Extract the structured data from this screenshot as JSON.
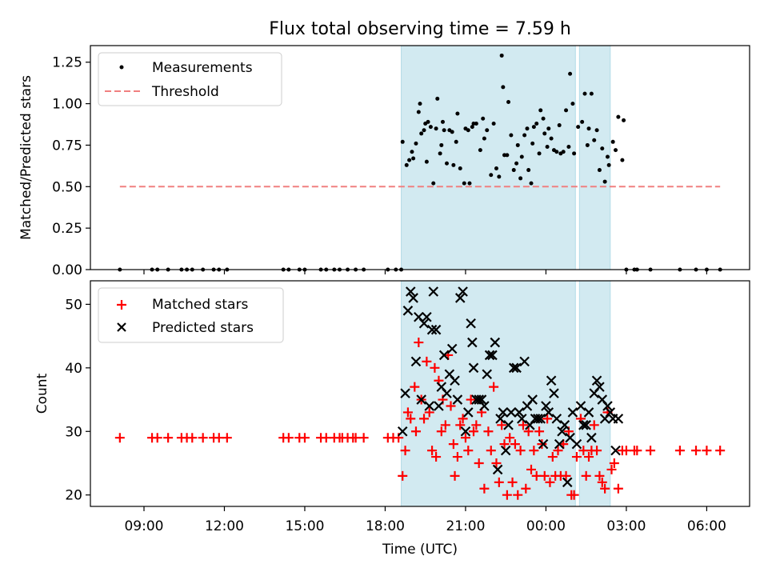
{
  "title": "Flux total observing time = 7.59 h",
  "x_axis": {
    "label": "Time (UTC)",
    "ticks": [
      "09:00",
      "12:00",
      "15:00",
      "18:00",
      "21:00",
      "00:00",
      "03:00",
      "06:00"
    ],
    "tick_hours": [
      9,
      12,
      15,
      18,
      21,
      24,
      27,
      30
    ],
    "range_hours": [
      7.0,
      31.6
    ]
  },
  "colors": {
    "span": "#add8e6",
    "threshold": "#f08080",
    "measure": "#000000",
    "matched": "#ff0000",
    "predicted": "#000000"
  },
  "chart_data": [
    {
      "type": "scatter",
      "ylabel": "Matched/Predicted stars",
      "ylim": [
        0,
        1.35
      ],
      "yticks": [
        "0.00",
        "0.25",
        "0.50",
        "0.75",
        "1.00",
        "1.25"
      ],
      "ytick_values": [
        0,
        0.25,
        0.5,
        0.75,
        1.0,
        1.25
      ],
      "legend": [
        "Measurements",
        "Threshold"
      ],
      "legend_position": "upper-left",
      "shaded_spans_hours": [
        [
          18.6,
          25.1
        ],
        [
          25.25,
          26.4
        ]
      ],
      "threshold": {
        "y": 0.5,
        "x_range_hours": [
          8.1,
          30.5
        ]
      },
      "measurements": [
        [
          8.1,
          0
        ],
        [
          9.3,
          0
        ],
        [
          9.5,
          0
        ],
        [
          9.9,
          0
        ],
        [
          10.4,
          0
        ],
        [
          10.6,
          0
        ],
        [
          10.8,
          0
        ],
        [
          11.2,
          0
        ],
        [
          11.6,
          0
        ],
        [
          11.8,
          0
        ],
        [
          12.1,
          0
        ],
        [
          14.2,
          0
        ],
        [
          14.4,
          0
        ],
        [
          14.8,
          0
        ],
        [
          15.0,
          0
        ],
        [
          15.6,
          0
        ],
        [
          15.8,
          0
        ],
        [
          16.1,
          0
        ],
        [
          16.3,
          0
        ],
        [
          16.6,
          0
        ],
        [
          16.9,
          0
        ],
        [
          17.2,
          0
        ],
        [
          18.1,
          0
        ],
        [
          18.4,
          0
        ],
        [
          18.6,
          0
        ],
        [
          18.65,
          0.77
        ],
        [
          18.8,
          0.63
        ],
        [
          18.9,
          0.66
        ],
        [
          19.0,
          0.71
        ],
        [
          19.05,
          0.67
        ],
        [
          19.15,
          0.76
        ],
        [
          19.25,
          0.95
        ],
        [
          19.3,
          1.0
        ],
        [
          19.35,
          0.82
        ],
        [
          19.45,
          0.84
        ],
        [
          19.5,
          0.88
        ],
        [
          19.55,
          0.65
        ],
        [
          19.6,
          0.89
        ],
        [
          19.7,
          0.86
        ],
        [
          19.8,
          0.52
        ],
        [
          19.9,
          0.85
        ],
        [
          19.95,
          1.03
        ],
        [
          20.05,
          0.7
        ],
        [
          20.1,
          0.75
        ],
        [
          20.15,
          0.89
        ],
        [
          20.2,
          0.84
        ],
        [
          20.3,
          0.64
        ],
        [
          20.4,
          0.84
        ],
        [
          20.5,
          0.83
        ],
        [
          20.55,
          0.63
        ],
        [
          20.65,
          0.77
        ],
        [
          20.7,
          0.94
        ],
        [
          20.8,
          0.61
        ],
        [
          20.95,
          0.52
        ],
        [
          21.0,
          0.85
        ],
        [
          21.1,
          0.84
        ],
        [
          21.15,
          0.52
        ],
        [
          21.25,
          0.86
        ],
        [
          21.3,
          0.88
        ],
        [
          21.4,
          0.88
        ],
        [
          21.55,
          0.72
        ],
        [
          21.65,
          0.91
        ],
        [
          21.7,
          0.79
        ],
        [
          21.8,
          0.84
        ],
        [
          21.95,
          0.57
        ],
        [
          22.05,
          0.88
        ],
        [
          22.15,
          0.61
        ],
        [
          22.25,
          0.56
        ],
        [
          22.35,
          1.29
        ],
        [
          22.4,
          1.1
        ],
        [
          22.45,
          0.69
        ],
        [
          22.55,
          0.69
        ],
        [
          22.6,
          1.01
        ],
        [
          22.7,
          0.81
        ],
        [
          22.8,
          0.6
        ],
        [
          22.9,
          0.64
        ],
        [
          22.95,
          0.75
        ],
        [
          23.05,
          0.55
        ],
        [
          23.1,
          0.68
        ],
        [
          23.2,
          0.81
        ],
        [
          23.3,
          0.85
        ],
        [
          23.35,
          0.6
        ],
        [
          23.45,
          0.52
        ],
        [
          23.5,
          0.76
        ],
        [
          23.55,
          0.86
        ],
        [
          23.65,
          0.88
        ],
        [
          23.75,
          0.7
        ],
        [
          23.8,
          0.96
        ],
        [
          23.9,
          0.91
        ],
        [
          23.95,
          0.82
        ],
        [
          24.05,
          0.74
        ],
        [
          24.1,
          0.85
        ],
        [
          24.2,
          0.79
        ],
        [
          24.3,
          0.72
        ],
        [
          24.4,
          0.71
        ],
        [
          24.5,
          0.87
        ],
        [
          24.55,
          0.7
        ],
        [
          24.65,
          0.71
        ],
        [
          24.75,
          0.96
        ],
        [
          24.85,
          0.74
        ],
        [
          24.9,
          1.18
        ],
        [
          25.0,
          1.0
        ],
        [
          25.05,
          0.7
        ],
        [
          25.2,
          0.86
        ],
        [
          25.35,
          0.89
        ],
        [
          25.45,
          1.06
        ],
        [
          25.55,
          0.75
        ],
        [
          25.6,
          0.85
        ],
        [
          25.7,
          1.06
        ],
        [
          25.8,
          0.78
        ],
        [
          25.9,
          0.84
        ],
        [
          26.0,
          0.6
        ],
        [
          26.1,
          0.73
        ],
        [
          26.2,
          0.53
        ],
        [
          26.3,
          0.68
        ],
        [
          26.35,
          0.63
        ],
        [
          26.5,
          0.77
        ],
        [
          26.6,
          0.72
        ],
        [
          26.7,
          0.92
        ],
        [
          26.85,
          0.66
        ],
        [
          26.9,
          0.9
        ],
        [
          27.0,
          0
        ],
        [
          27.3,
          0
        ],
        [
          27.4,
          0
        ],
        [
          27.9,
          0
        ],
        [
          29.0,
          0
        ],
        [
          29.6,
          0
        ],
        [
          30.0,
          0
        ],
        [
          30.5,
          0
        ]
      ]
    },
    {
      "type": "scatter",
      "ylabel": "Count",
      "ylim": [
        18.2,
        53.7
      ],
      "yticks": [
        "20",
        "30",
        "40",
        "50"
      ],
      "ytick_values": [
        20,
        30,
        40,
        50
      ],
      "legend": [
        "Matched stars",
        "Predicted stars"
      ],
      "legend_position": "upper-left",
      "shaded_spans_hours": [
        [
          18.6,
          25.1
        ],
        [
          25.25,
          26.4
        ]
      ],
      "matched": [
        [
          8.1,
          29
        ],
        [
          9.3,
          29
        ],
        [
          9.5,
          29
        ],
        [
          9.9,
          29
        ],
        [
          10.4,
          29
        ],
        [
          10.6,
          29
        ],
        [
          10.8,
          29
        ],
        [
          11.2,
          29
        ],
        [
          11.6,
          29
        ],
        [
          11.8,
          29
        ],
        [
          12.1,
          29
        ],
        [
          14.2,
          29
        ],
        [
          14.4,
          29
        ],
        [
          14.8,
          29
        ],
        [
          15.0,
          29
        ],
        [
          15.6,
          29
        ],
        [
          15.8,
          29
        ],
        [
          16.1,
          29
        ],
        [
          16.3,
          29
        ],
        [
          16.4,
          29
        ],
        [
          16.6,
          29
        ],
        [
          16.8,
          29
        ],
        [
          16.9,
          29
        ],
        [
          17.2,
          29
        ],
        [
          18.1,
          29
        ],
        [
          18.3,
          29
        ],
        [
          18.5,
          29
        ],
        [
          18.65,
          23
        ],
        [
          18.75,
          27
        ],
        [
          18.85,
          33
        ],
        [
          18.95,
          32
        ],
        [
          19.1,
          37
        ],
        [
          19.15,
          30
        ],
        [
          19.25,
          44
        ],
        [
          19.35,
          35
        ],
        [
          19.45,
          32
        ],
        [
          19.55,
          41
        ],
        [
          19.65,
          33
        ],
        [
          19.75,
          27
        ],
        [
          19.85,
          40
        ],
        [
          19.9,
          26
        ],
        [
          20.0,
          38
        ],
        [
          20.1,
          30
        ],
        [
          20.15,
          35
        ],
        [
          20.25,
          31
        ],
        [
          20.35,
          42
        ],
        [
          20.45,
          34
        ],
        [
          20.55,
          28
        ],
        [
          20.6,
          23
        ],
        [
          20.7,
          26
        ],
        [
          20.8,
          31
        ],
        [
          20.9,
          32
        ],
        [
          21.0,
          29
        ],
        [
          21.1,
          27
        ],
        [
          21.2,
          35
        ],
        [
          21.3,
          30
        ],
        [
          21.4,
          31
        ],
        [
          21.5,
          25
        ],
        [
          21.6,
          33
        ],
        [
          21.7,
          21
        ],
        [
          21.85,
          30
        ],
        [
          21.95,
          27
        ],
        [
          22.05,
          37
        ],
        [
          22.15,
          25
        ],
        [
          22.25,
          22
        ],
        [
          22.35,
          31
        ],
        [
          22.45,
          28
        ],
        [
          22.55,
          20
        ],
        [
          22.65,
          29
        ],
        [
          22.75,
          22
        ],
        [
          22.85,
          28
        ],
        [
          22.95,
          20
        ],
        [
          23.05,
          27
        ],
        [
          23.15,
          31
        ],
        [
          23.25,
          21
        ],
        [
          23.35,
          30
        ],
        [
          23.45,
          24
        ],
        [
          23.55,
          27
        ],
        [
          23.65,
          23
        ],
        [
          23.75,
          30
        ],
        [
          23.85,
          28
        ],
        [
          23.95,
          23
        ],
        [
          24.05,
          32
        ],
        [
          24.15,
          22
        ],
        [
          24.25,
          26
        ],
        [
          24.35,
          23
        ],
        [
          24.45,
          27
        ],
        [
          24.55,
          23
        ],
        [
          24.65,
          28
        ],
        [
          24.75,
          23
        ],
        [
          24.85,
          30
        ],
        [
          24.95,
          20
        ],
        [
          25.05,
          20
        ],
        [
          25.15,
          26
        ],
        [
          25.3,
          32
        ],
        [
          25.4,
          27
        ],
        [
          25.5,
          23
        ],
        [
          25.6,
          26
        ],
        [
          25.7,
          27
        ],
        [
          25.8,
          31
        ],
        [
          25.9,
          27
        ],
        [
          26.0,
          23
        ],
        [
          26.1,
          22
        ],
        [
          26.2,
          21
        ],
        [
          26.3,
          33
        ],
        [
          26.45,
          24
        ],
        [
          26.55,
          25
        ],
        [
          26.7,
          21
        ],
        [
          26.85,
          27
        ],
        [
          27.0,
          27
        ],
        [
          27.3,
          27
        ],
        [
          27.4,
          27
        ],
        [
          27.9,
          27
        ],
        [
          29.0,
          27
        ],
        [
          29.6,
          27
        ],
        [
          30.0,
          27
        ],
        [
          30.5,
          27
        ]
      ],
      "predicted": [
        [
          18.65,
          30
        ],
        [
          18.75,
          36
        ],
        [
          18.85,
          49
        ],
        [
          18.95,
          52
        ],
        [
          19.05,
          51
        ],
        [
          19.15,
          41
        ],
        [
          19.25,
          48
        ],
        [
          19.35,
          35
        ],
        [
          19.45,
          47
        ],
        [
          19.55,
          48
        ],
        [
          19.65,
          34
        ],
        [
          19.75,
          46
        ],
        [
          19.8,
          52
        ],
        [
          19.9,
          46
        ],
        [
          20.0,
          34
        ],
        [
          20.1,
          37
        ],
        [
          20.2,
          42
        ],
        [
          20.3,
          36
        ],
        [
          20.4,
          39
        ],
        [
          20.5,
          43
        ],
        [
          20.6,
          38
        ],
        [
          20.7,
          35
        ],
        [
          20.8,
          51
        ],
        [
          20.9,
          52
        ],
        [
          21.0,
          30
        ],
        [
          21.1,
          33
        ],
        [
          21.2,
          47
        ],
        [
          21.25,
          44
        ],
        [
          21.3,
          40
        ],
        [
          21.4,
          35
        ],
        [
          21.5,
          35
        ],
        [
          21.6,
          35
        ],
        [
          21.7,
          34
        ],
        [
          21.8,
          39
        ],
        [
          21.9,
          42
        ],
        [
          22.0,
          42
        ],
        [
          22.1,
          44
        ],
        [
          22.2,
          24
        ],
        [
          22.3,
          32
        ],
        [
          22.4,
          33
        ],
        [
          22.5,
          27
        ],
        [
          22.6,
          31
        ],
        [
          22.7,
          33
        ],
        [
          22.8,
          40
        ],
        [
          22.9,
          40
        ],
        [
          23.0,
          33
        ],
        [
          23.1,
          32
        ],
        [
          23.2,
          41
        ],
        [
          23.3,
          34
        ],
        [
          23.4,
          31
        ],
        [
          23.5,
          35
        ],
        [
          23.6,
          32
        ],
        [
          23.7,
          32
        ],
        [
          23.8,
          32
        ],
        [
          23.9,
          28
        ],
        [
          24.0,
          34
        ],
        [
          24.1,
          33
        ],
        [
          24.2,
          38
        ],
        [
          24.3,
          36
        ],
        [
          24.4,
          32
        ],
        [
          24.5,
          28
        ],
        [
          24.6,
          30
        ],
        [
          24.7,
          31
        ],
        [
          24.8,
          22
        ],
        [
          24.9,
          29
        ],
        [
          25.0,
          33
        ],
        [
          25.15,
          28
        ],
        [
          25.3,
          34
        ],
        [
          25.4,
          31
        ],
        [
          25.5,
          31
        ],
        [
          25.6,
          33
        ],
        [
          25.7,
          29
        ],
        [
          25.8,
          36
        ],
        [
          25.9,
          38
        ],
        [
          26.0,
          37
        ],
        [
          26.1,
          35
        ],
        [
          26.2,
          32
        ],
        [
          26.3,
          34
        ],
        [
          26.4,
          33
        ],
        [
          26.5,
          32
        ],
        [
          26.6,
          27
        ],
        [
          26.7,
          32
        ]
      ]
    }
  ]
}
